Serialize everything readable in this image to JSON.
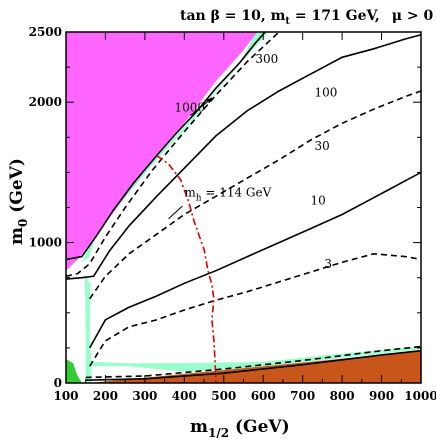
{
  "chart_data": {
    "type": "line",
    "title_parts": {
      "tanb": "tan β = 10",
      "mt_base": ", m",
      "mt_sub": "t",
      "mt_rest": " = 171 GeV,",
      "mu": "μ > 0"
    },
    "xlabel_parts": {
      "base": "m",
      "sub": "1/2",
      "unit": " (GeV)"
    },
    "ylabel_parts": {
      "base": "m",
      "sub": "0",
      "unit": " (GeV)"
    },
    "xlim": [
      100,
      1000
    ],
    "ylim": [
      0,
      2500
    ],
    "x_ticks": [
      "100",
      "200",
      "300",
      "400",
      "500",
      "600",
      "700",
      "800",
      "900",
      "1000"
    ],
    "y_ticks": [
      "0",
      "1000",
      "2000",
      "2500"
    ],
    "colors": {
      "magenta": "#ff66ff",
      "brown": "#c8551a",
      "green": "#33cc33",
      "band": "#99ffcc",
      "red": "#dd0000"
    },
    "regions": {
      "magenta": [
        [
          100,
          2500
        ],
        [
          585,
          2500
        ],
        [
          550,
          2370
        ],
        [
          480,
          2150
        ],
        [
          400,
          1850
        ],
        [
          330,
          1620
        ],
        [
          260,
          1370
        ],
        [
          190,
          1100
        ],
        [
          130,
          880
        ],
        [
          100,
          800
        ]
      ],
      "brown": [
        [
          155,
          0
        ],
        [
          1000,
          0
        ],
        [
          1000,
          230
        ],
        [
          700,
          145
        ],
        [
          400,
          65
        ],
        [
          250,
          25
        ]
      ],
      "green": [
        [
          100,
          0
        ],
        [
          100,
          170
        ],
        [
          118,
          140
        ],
        [
          128,
          60
        ],
        [
          140,
          0
        ]
      ],
      "band_upper": [
        [
          580,
          2500
        ],
        [
          615,
          2500
        ],
        [
          575,
          2380
        ],
        [
          520,
          2210
        ],
        [
          440,
          1950
        ],
        [
          360,
          1700
        ],
        [
          300,
          1520
        ],
        [
          255,
          1380
        ],
        [
          210,
          1220
        ],
        [
          175,
          1050
        ],
        [
          160,
          900
        ],
        [
          140,
          860
        ],
        [
          160,
          980
        ],
        [
          195,
          1130
        ],
        [
          250,
          1320
        ],
        [
          320,
          1560
        ],
        [
          400,
          1800
        ],
        [
          480,
          2070
        ],
        [
          540,
          2270
        ]
      ],
      "band_lower": [
        [
          150,
          0
        ],
        [
          165,
          0
        ],
        [
          165,
          120
        ],
        [
          260,
          120
        ],
        [
          400,
          80
        ],
        [
          600,
          110
        ],
        [
          800,
          180
        ],
        [
          1000,
          240
        ],
        [
          1000,
          260
        ],
        [
          800,
          210
        ],
        [
          600,
          150
        ],
        [
          400,
          140
        ],
        [
          260,
          140
        ],
        [
          165,
          150
        ],
        [
          160,
          300
        ],
        [
          162,
          700
        ],
        [
          148,
          780
        ],
        [
          150,
          300
        ]
      ]
    },
    "contours": [
      {
        "label": "1000",
        "style": "solid",
        "points": [
          [
            100,
            880
          ],
          [
            140,
            900
          ],
          [
            180,
            1060
          ],
          [
            220,
            1230
          ],
          [
            270,
            1420
          ],
          [
            330,
            1620
          ],
          [
            380,
            1780
          ],
          [
            430,
            1930
          ],
          [
            480,
            2100
          ],
          [
            540,
            2280
          ],
          [
            580,
            2420
          ],
          [
            605,
            2500
          ]
        ]
      },
      {
        "label": "300",
        "style": "dashed",
        "points": [
          [
            100,
            760
          ],
          [
            130,
            780
          ],
          [
            160,
            850
          ],
          [
            200,
            1040
          ],
          [
            250,
            1250
          ],
          [
            320,
            1520
          ],
          [
            400,
            1790
          ],
          [
            480,
            2050
          ],
          [
            560,
            2290
          ],
          [
            640,
            2500
          ]
        ]
      },
      {
        "label": "100",
        "style": "solid",
        "points": [
          [
            100,
            740
          ],
          [
            140,
            750
          ],
          [
            170,
            760
          ],
          [
            210,
            940
          ],
          [
            260,
            1120
          ],
          [
            330,
            1330
          ],
          [
            400,
            1530
          ],
          [
            480,
            1760
          ],
          [
            560,
            1940
          ],
          [
            640,
            2080
          ],
          [
            720,
            2200
          ],
          [
            800,
            2320
          ],
          [
            880,
            2380
          ],
          [
            960,
            2450
          ],
          [
            1000,
            2480
          ]
        ]
      },
      {
        "label": "30",
        "style": "dashed",
        "points": [
          [
            160,
            600
          ],
          [
            200,
            760
          ],
          [
            260,
            920
          ],
          [
            330,
            1060
          ],
          [
            400,
            1200
          ],
          [
            480,
            1330
          ],
          [
            560,
            1460
          ],
          [
            640,
            1590
          ],
          [
            720,
            1730
          ],
          [
            800,
            1850
          ],
          [
            880,
            1950
          ],
          [
            960,
            2040
          ],
          [
            1000,
            2080
          ]
        ]
      },
      {
        "label": "10",
        "style": "solid",
        "points": [
          [
            160,
            250
          ],
          [
            200,
            450
          ],
          [
            260,
            540
          ],
          [
            330,
            620
          ],
          [
            400,
            710
          ],
          [
            480,
            800
          ],
          [
            560,
            900
          ],
          [
            640,
            1000
          ],
          [
            720,
            1100
          ],
          [
            800,
            1200
          ],
          [
            880,
            1320
          ],
          [
            960,
            1440
          ],
          [
            1000,
            1500
          ]
        ]
      },
      {
        "label": "3",
        "style": "dashed",
        "points": [
          [
            160,
            120
          ],
          [
            200,
            300
          ],
          [
            260,
            400
          ],
          [
            330,
            450
          ],
          [
            400,
            520
          ],
          [
            480,
            590
          ],
          [
            560,
            650
          ],
          [
            640,
            720
          ],
          [
            720,
            790
          ],
          [
            800,
            860
          ],
          [
            880,
            920
          ],
          [
            960,
            900
          ],
          [
            1000,
            880
          ]
        ]
      },
      {
        "label": "",
        "style": "dashed",
        "points": [
          [
            150,
            40
          ],
          [
            300,
            50
          ],
          [
            500,
            100
          ],
          [
            700,
            160
          ],
          [
            900,
            230
          ],
          [
            1000,
            260
          ]
        ]
      },
      {
        "label": "",
        "style": "solid",
        "points": [
          [
            150,
            20
          ],
          [
            300,
            30
          ],
          [
            500,
            70
          ],
          [
            700,
            130
          ],
          [
            900,
            200
          ],
          [
            1000,
            230
          ]
        ]
      }
    ],
    "mh_contour": {
      "label_base": "m",
      "label_sub": "h",
      "label_rest": " = 114 GeV",
      "points": [
        [
          330,
          1620
        ],
        [
          360,
          1560
        ],
        [
          390,
          1450
        ],
        [
          410,
          1300
        ],
        [
          425,
          1150
        ],
        [
          450,
          950
        ],
        [
          460,
          800
        ],
        [
          470,
          700
        ],
        [
          475,
          600
        ],
        [
          470,
          450
        ],
        [
          475,
          300
        ],
        [
          478,
          150
        ],
        [
          480,
          0
        ]
      ]
    },
    "contour_labels": [
      {
        "text": "1000",
        "at": [
          375,
          1935
        ]
      },
      {
        "text": "300",
        "at": [
          580,
          2280
        ]
      },
      {
        "text": "100",
        "at": [
          730,
          2040
        ]
      },
      {
        "text": "30",
        "at": [
          730,
          1660
        ]
      },
      {
        "text": "10",
        "at": [
          720,
          1270
        ]
      },
      {
        "text": "3",
        "at": [
          755,
          820
        ]
      }
    ],
    "arrow_1000": {
      "from": [
        415,
        1905
      ],
      "to": [
        470,
        2030
      ]
    }
  }
}
